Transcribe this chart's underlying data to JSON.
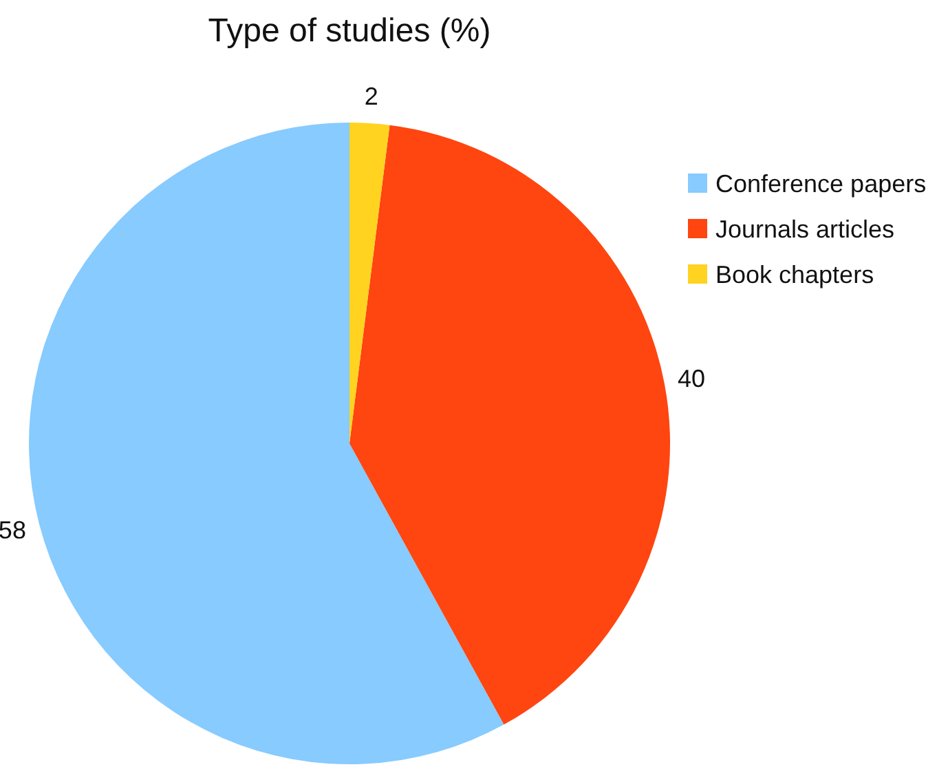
{
  "chart_data": {
    "type": "pie",
    "title": "Type of studies (%)",
    "categories": [
      "Conference papers",
      "Journals articles",
      "Book chapters"
    ],
    "values": [
      58,
      40,
      2
    ],
    "colors": [
      "#87cbff",
      "#ff4510",
      "#ffd320"
    ],
    "data_labels": true,
    "legend": "right"
  }
}
